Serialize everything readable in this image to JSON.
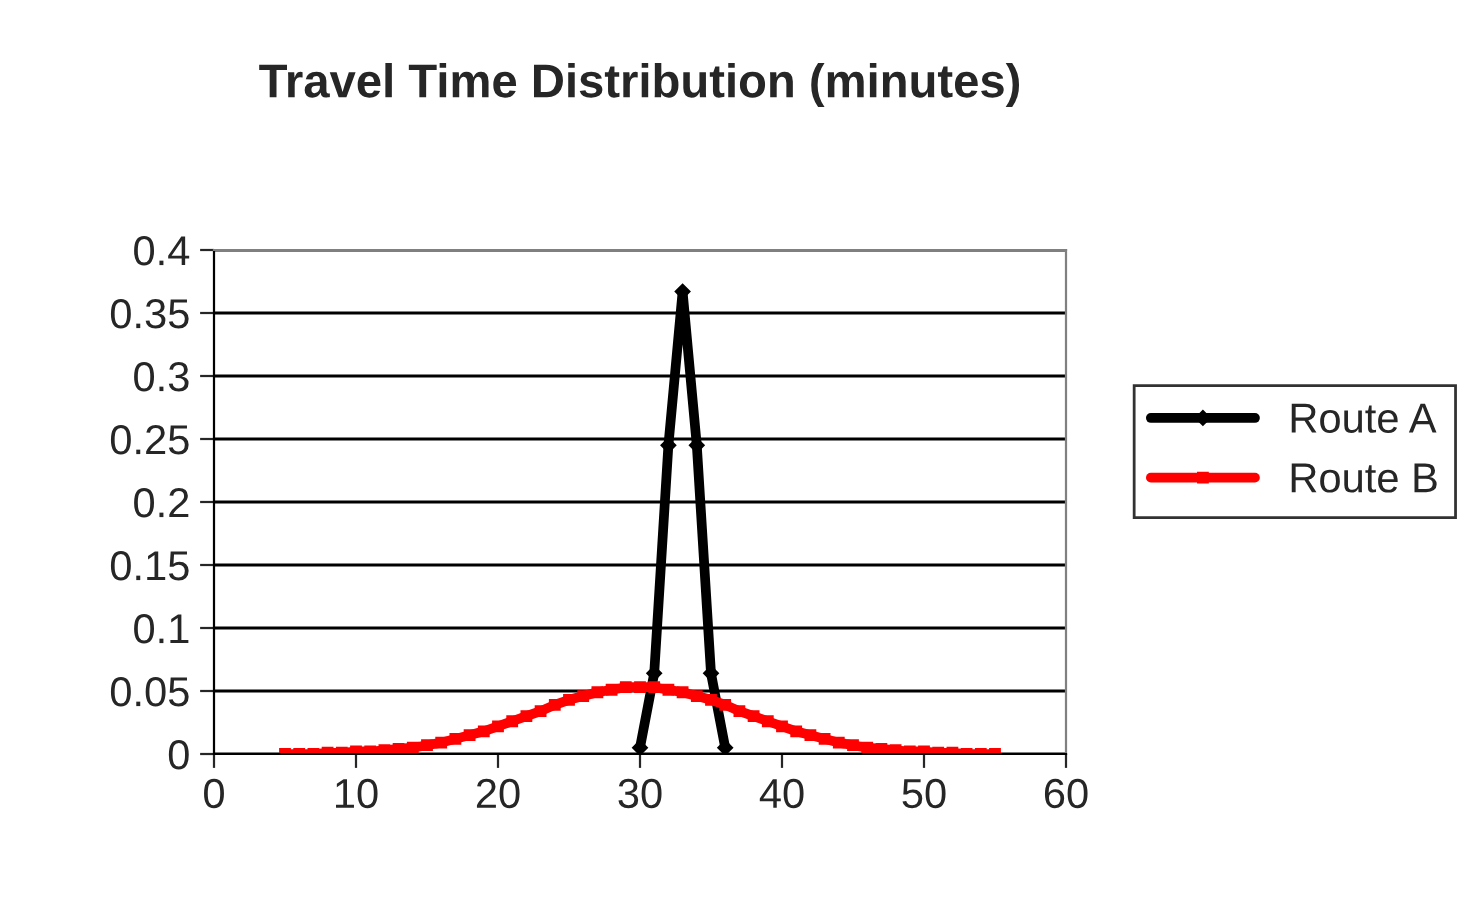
{
  "chart_data": {
    "type": "line",
    "title": "Travel Time Distribution (minutes)",
    "xlim": [
      0,
      60
    ],
    "xticks": [
      0,
      10,
      20,
      30,
      40,
      50,
      60
    ],
    "ylim": [
      0,
      0.4
    ],
    "yticks": [
      0,
      0.05,
      0.1,
      0.15,
      0.2,
      0.25,
      0.3,
      0.35,
      0.4
    ],
    "grid": "y",
    "legend": "right",
    "line_style": "solid",
    "series": [
      {
        "name": "Route A",
        "color": "#000000",
        "marker": "diamond",
        "x": [
          30,
          31,
          32,
          33,
          34,
          35,
          36
        ],
        "values": [
          0.005,
          0.064,
          0.245,
          0.367,
          0.245,
          0.064,
          0.005
        ]
      },
      {
        "name": "Route B",
        "color": "#ff0000",
        "marker": "square",
        "x": [
          5,
          6,
          7,
          8,
          9,
          10,
          11,
          12,
          13,
          14,
          15,
          16,
          17,
          18,
          19,
          20,
          21,
          22,
          23,
          24,
          25,
          26,
          27,
          28,
          29,
          30,
          31,
          32,
          33,
          34,
          35,
          36,
          37,
          38,
          39,
          40,
          41,
          42,
          43,
          44,
          45,
          46,
          47,
          48,
          49,
          50,
          51,
          52,
          53,
          54,
          55
        ],
        "values": [
          0.0,
          0.0,
          0.0,
          0.001,
          0.001,
          0.002,
          0.002,
          0.003,
          0.004,
          0.005,
          0.007,
          0.009,
          0.012,
          0.015,
          0.018,
          0.022,
          0.026,
          0.03,
          0.034,
          0.039,
          0.043,
          0.046,
          0.049,
          0.051,
          0.053,
          0.053,
          0.053,
          0.051,
          0.049,
          0.046,
          0.043,
          0.039,
          0.034,
          0.03,
          0.026,
          0.022,
          0.018,
          0.015,
          0.012,
          0.009,
          0.007,
          0.005,
          0.004,
          0.003,
          0.002,
          0.002,
          0.001,
          0.001,
          0.0,
          0.0,
          0.0
        ]
      }
    ]
  }
}
